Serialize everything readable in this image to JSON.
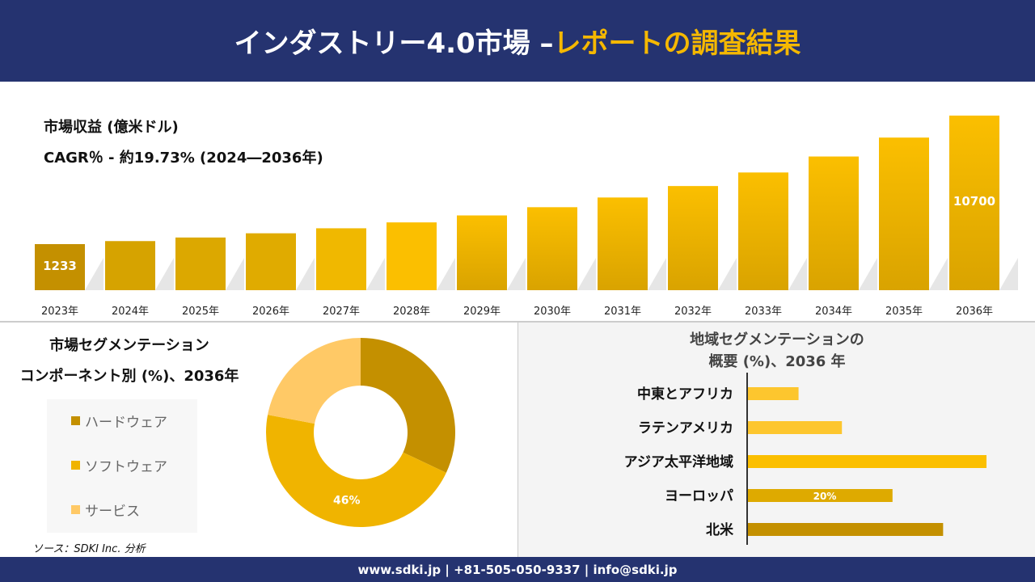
{
  "header": {
    "title_white": "インダストリー4.0市場 –",
    "title_yellow": "レポートの調査結果"
  },
  "revenue": {
    "title": "市場収益 (億米ドル)",
    "cagr": "CAGR％ - 約19.73% (2024―2036年)"
  },
  "chart_data": [
    {
      "type": "bar",
      "categories": [
        "2023年",
        "2024年",
        "2025年",
        "2026年",
        "2027年",
        "2028年",
        "2029年",
        "2030年",
        "2031年",
        "2032年",
        "2033年",
        "2034年",
        "2035年",
        "2036年"
      ],
      "values": [
        1233,
        1456,
        1720,
        2031,
        2399,
        2833,
        3346,
        3952,
        4667,
        5512,
        6510,
        7688,
        9080,
        10700
      ],
      "data_labels": {
        "0": "1233",
        "13": "10700"
      },
      "colors": [
        "#c49000",
        "#d6a300",
        "#dca800",
        "#e0ab00",
        "#f0b800",
        "#fbbf00",
        "#f5ba00",
        "#f5ba00",
        "#f5ba00",
        "#f5ba00",
        "#f5ba00",
        "#f5ba00",
        "#f5ba00",
        "#f5ba00"
      ]
    },
    {
      "type": "pie",
      "title": "市場セグメンテーション コンポーネント別 (%)、2036年",
      "title_lines": [
        "市場セグメンテーション",
        "コンポーネント別 (%)、2036年"
      ],
      "labels": [
        "ハードウェア",
        "ソフトウェア",
        "サービス"
      ],
      "values": [
        32,
        46,
        22
      ],
      "data_labels": {
        "1": "46%"
      },
      "colors": [
        "#c49000",
        "#f0b400",
        "#ffc966"
      ],
      "donut": true
    },
    {
      "type": "bar",
      "orientation": "horizontal",
      "title": "地域セグメンテーションの 概要 (%)、2036 年",
      "title_lines": [
        "地域セグメンテーションの",
        "概要 (%)、2036 年"
      ],
      "categories": [
        "中東とアフリカ",
        "ラテンアメリカ",
        "アジア太平洋地域",
        "ヨーロッパ",
        "北米"
      ],
      "values": [
        7,
        13,
        33,
        20,
        27
      ],
      "data_labels": {
        "3": "20%"
      },
      "colors": [
        "#fdc62e",
        "#fdc62e",
        "#fbbf00",
        "#deaa00",
        "#c49000"
      ]
    }
  ],
  "source": "ソース：SDKI Inc. 分析",
  "footer": "www.sdki.jp | +81-505-050-9337 | info@sdki.jp"
}
